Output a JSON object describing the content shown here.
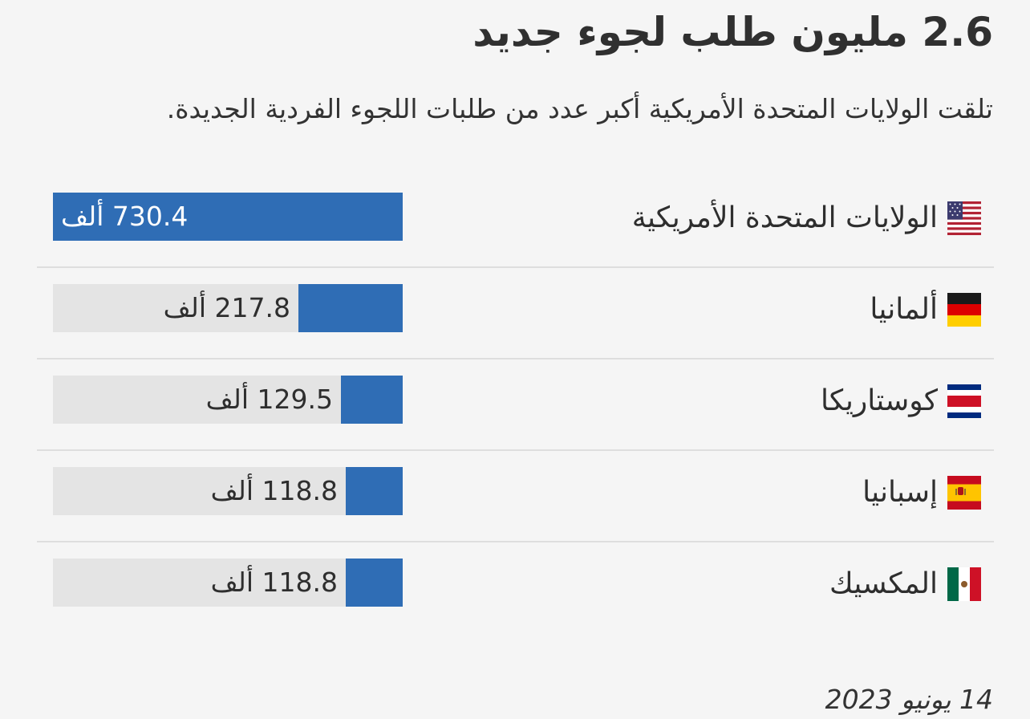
{
  "title": "2.6 مليون طلب لجوء جديد",
  "subtitle": "تلقت الولايات المتحدة الأمريكية أكبر عدد من طلبات اللجوء الفردية الجديدة.",
  "date": "14 يونيو 2023",
  "colors": {
    "bar": "#2f6db5",
    "track": "#e4e4e4",
    "background": "#f5f5f5"
  },
  "rows": [
    {
      "country": "الولايات المتحدة الأمريكية",
      "flag": "us-flag-icon",
      "label": "730.4 ألف"
    },
    {
      "country": "ألمانيا",
      "flag": "germany-flag-icon",
      "label": "217.8 ألف"
    },
    {
      "country": "كوستاريكا",
      "flag": "costa-rica-flag-icon",
      "label": "129.5 ألف"
    },
    {
      "country": "إسبانيا",
      "flag": "spain-flag-icon",
      "label": "118.8 ألف"
    },
    {
      "country": "المكسيك",
      "flag": "mexico-flag-icon",
      "label": "118.8 ألف"
    }
  ],
  "chart_data": {
    "type": "bar",
    "orientation": "horizontal",
    "title": "2.6 مليون طلب لجوء جديد",
    "subtitle": "تلقت الولايات المتحدة الأمريكية أكبر عدد من طلبات اللجوء الفردية الجديدة.",
    "categories": [
      "الولايات المتحدة الأمريكية",
      "ألمانيا",
      "كوستاريكا",
      "إسبانيا",
      "المكسيك"
    ],
    "values": [
      730.4,
      217.8,
      129.5,
      118.8,
      118.8
    ],
    "data_labels": [
      "730.4 ألف",
      "217.8 ألف",
      "129.5 ألف",
      "118.8 ألف",
      "118.8 ألف"
    ],
    "xlim": [
      0,
      730.4
    ],
    "grid": false,
    "legend": "none"
  }
}
